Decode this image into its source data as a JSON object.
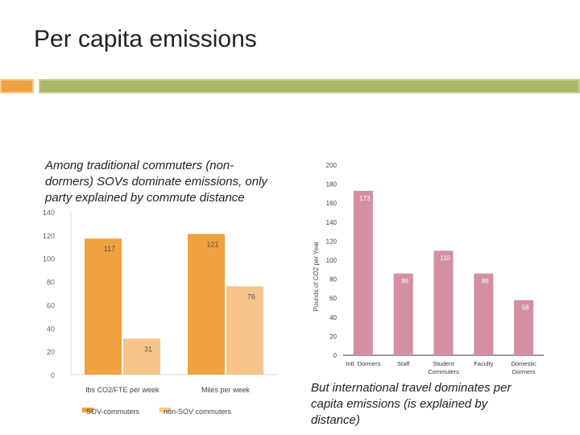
{
  "slide": {
    "title": "Per capita emissions",
    "caption_left": "Among traditional commuters (non-dormers) SOVs dominate emissions, only party explained by commute distance",
    "caption_right": "But international travel dominates per capita emissions (is explained by distance)"
  },
  "colors": {
    "accent_orange": "#f0a140",
    "accent_green": "#a9b865"
  },
  "chart_data": [
    {
      "type": "bar",
      "categories": [
        "lbs CO2/FTE per week",
        "Miles per week"
      ],
      "series": [
        {
          "name": "SOV-commuters",
          "values": [
            117,
            121
          ],
          "color": "#f0a140"
        },
        {
          "name": "non-SOV commuters",
          "values": [
            31,
            76
          ],
          "color": "#f7c58c"
        }
      ],
      "ylim": [
        0,
        140
      ],
      "yticks": [
        0,
        20,
        40,
        60,
        80,
        100,
        120,
        140
      ],
      "legend": "bottom"
    },
    {
      "type": "bar",
      "categories": [
        "Intl. Dormers",
        "Staff",
        "Student Commuters",
        "Faculty",
        "Domestic Dormers"
      ],
      "values": [
        173,
        86,
        110,
        86,
        58
      ],
      "ylabel": "Pounds of CO2 per Year",
      "ylim": [
        0,
        200
      ],
      "yticks": [
        0,
        20,
        40,
        60,
        80,
        100,
        120,
        140,
        160,
        180,
        200
      ],
      "color": "#d48fa1"
    }
  ]
}
